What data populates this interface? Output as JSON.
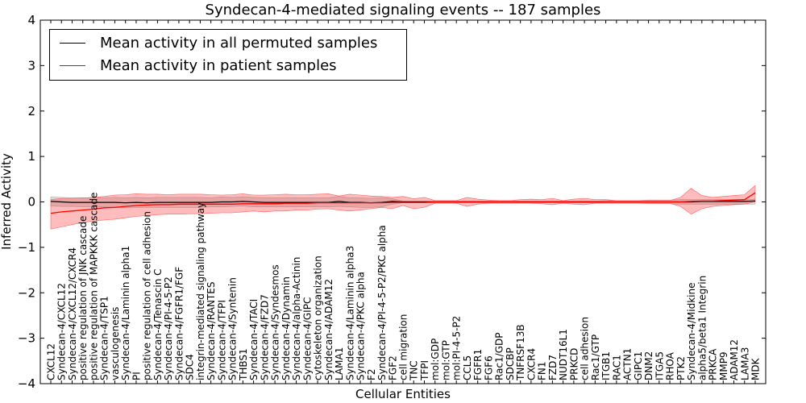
{
  "chart_data": {
    "type": "line",
    "title": "Syndecan-4-mediated signaling events -- 187 samples",
    "xlabel": "Cellular Entities",
    "ylabel": "Inferred Activity",
    "ylim": [
      -4,
      4
    ],
    "yticks": [
      -4,
      -3,
      -2,
      -1,
      0,
      1,
      2,
      3,
      4
    ],
    "ytick_labels": [
      "−4",
      "−3",
      "−2",
      "−1",
      "0",
      "1",
      "2",
      "3",
      "4"
    ],
    "legend_position": "top-left",
    "categories": [
      "CXCL12",
      "Syndecan-4/CXCL12",
      "Syndecan-4/CXCL12/CXCR4",
      "positive regulation of JNK cascade",
      "positive regulation of MAPKKK cascade",
      "Syndecan-4/TSP1",
      "vasculogenesis",
      "Syndecan-4/Laminin alpha1",
      "PI",
      "positive regulation of cell adhesion",
      "Syndecan-4/Tenascin C",
      "Syndecan-4/PI-4-5-P2",
      "Syndecan-4/FGFR1/FGF",
      "SDC4",
      "integrin-mediated signaling pathway",
      "Syndecan-4/RANTES",
      "Syndecan-4/TFPI",
      "Syndecan-4/Syntenin",
      "THBS1",
      "Syndecan-4/TACI",
      "Syndecan-4/FZD7",
      "Syndecan-4/Syndesmos",
      "Syndecan-4/Dynamin",
      "Syndecan-4/alpha-Actinin",
      "Syndecan-4/GIPC",
      "cytoskeleton organization",
      "Syndecan-4/ADAM12",
      "LAMA1",
      "Syndecan-4/Laminin alpha3",
      "Syndecan-4/PKC alpha",
      "F2",
      "Syndecan-4/PI-4-5-P2/PKC alpha",
      "FGF2",
      "cell migration",
      "TNC",
      "TFPI",
      "mol:GDP",
      "mol:GTP",
      "mol:PI-4-5-P2",
      "CCL5",
      "FGFR1",
      "FGF6",
      "Rac1/GDP",
      "SDCBP",
      "TNFRSF13B",
      "CXCR4",
      "FN1",
      "FZD7",
      "NUDT16L1",
      "PRKCD",
      "cell adhesion",
      "Rac1/GTP",
      "ITGB1",
      "RAC1",
      "ACTN1",
      "GIPC1",
      "DNM2",
      "ITGA5",
      "RHOA",
      "PTK2",
      "Syndecan-4/Midkine",
      "alpha5/beta1 Integrin",
      "PRKCA",
      "MMP9",
      "ADAM12",
      "LAMA3",
      "MDK"
    ],
    "series": [
      {
        "name": "Mean activity in all permuted samples",
        "color": "#000000",
        "values": [
          0.01,
          0.0,
          -0.01,
          -0.01,
          -0.01,
          -0.01,
          -0.01,
          -0.02,
          -0.01,
          -0.02,
          -0.01,
          -0.01,
          -0.01,
          -0.01,
          -0.01,
          -0.01,
          0.0,
          0.0,
          0.01,
          0.0,
          -0.01,
          -0.01,
          -0.01,
          -0.01,
          -0.01,
          -0.01,
          -0.01,
          0.01,
          -0.01,
          -0.01,
          -0.02,
          -0.01,
          0.01,
          0.0,
          0.0,
          0.0,
          0.0,
          0.0,
          0.0,
          0.0,
          0.0,
          0.0,
          0.0,
          0.0,
          0.0,
          0.0,
          0.0,
          0.0,
          0.0,
          0.0,
          0.0,
          0.0,
          0.0,
          0.0,
          0.0,
          0.0,
          0.0,
          0.0,
          0.0,
          0.0,
          0.0,
          0.01,
          0.01,
          0.01,
          0.01,
          0.01,
          0.02
        ],
        "lower": [
          -0.09,
          -0.1,
          -0.1,
          -0.11,
          -0.11,
          -0.11,
          -0.12,
          -0.12,
          -0.12,
          -0.12,
          -0.12,
          -0.12,
          -0.12,
          -0.12,
          -0.12,
          -0.11,
          -0.11,
          -0.1,
          -0.09,
          -0.11,
          -0.11,
          -0.11,
          -0.11,
          -0.11,
          -0.11,
          -0.11,
          -0.11,
          -0.1,
          -0.11,
          -0.12,
          -0.12,
          -0.11,
          -0.05,
          -0.02,
          -0.02,
          -0.02,
          -0.02,
          -0.02,
          -0.02,
          -0.02,
          -0.02,
          -0.02,
          -0.02,
          -0.02,
          -0.02,
          -0.02,
          -0.02,
          -0.02,
          -0.02,
          -0.02,
          -0.02,
          -0.02,
          -0.03,
          -0.03,
          -0.03,
          -0.03,
          -0.04,
          -0.04,
          -0.04,
          -0.05,
          -0.05,
          -0.05,
          -0.05,
          -0.05,
          -0.05,
          -0.05,
          -0.05
        ],
        "upper": [
          0.11,
          0.1,
          0.09,
          0.09,
          0.09,
          0.09,
          0.1,
          0.09,
          0.1,
          0.09,
          0.1,
          0.1,
          0.1,
          0.1,
          0.1,
          0.09,
          0.11,
          0.1,
          0.11,
          0.1,
          0.09,
          0.09,
          0.09,
          0.09,
          0.09,
          0.09,
          0.09,
          0.12,
          0.09,
          0.09,
          0.08,
          0.09,
          0.07,
          0.02,
          0.02,
          0.02,
          0.02,
          0.02,
          0.02,
          0.02,
          0.02,
          0.02,
          0.02,
          0.02,
          0.02,
          0.02,
          0.02,
          0.02,
          0.02,
          0.02,
          0.02,
          0.02,
          0.03,
          0.03,
          0.03,
          0.03,
          0.04,
          0.04,
          0.04,
          0.05,
          0.05,
          0.05,
          0.05,
          0.05,
          0.05,
          0.05,
          0.06
        ]
      },
      {
        "name": "Mean activity in patient samples",
        "color": "#ff0000",
        "values": [
          -0.25,
          -0.22,
          -0.2,
          -0.18,
          -0.16,
          -0.13,
          -0.12,
          -0.1,
          -0.08,
          -0.07,
          -0.06,
          -0.06,
          -0.05,
          -0.05,
          -0.05,
          -0.05,
          -0.05,
          -0.05,
          -0.04,
          -0.04,
          -0.04,
          -0.04,
          -0.03,
          -0.03,
          -0.03,
          -0.02,
          -0.02,
          -0.02,
          -0.02,
          -0.02,
          -0.02,
          -0.02,
          -0.01,
          -0.01,
          -0.01,
          -0.01,
          0.0,
          0.0,
          0.0,
          0.0,
          0.0,
          0.0,
          0.0,
          0.0,
          0.0,
          0.0,
          0.0,
          0.0,
          0.0,
          0.0,
          0.0,
          0.0,
          0.0,
          0.0,
          0.0,
          0.0,
          0.0,
          0.0,
          0.0,
          0.0,
          0.01,
          0.02,
          0.02,
          0.03,
          0.04,
          0.05,
          0.2
        ],
        "lower": [
          -0.6,
          -0.55,
          -0.5,
          -0.45,
          -0.42,
          -0.4,
          -0.38,
          -0.35,
          -0.32,
          -0.3,
          -0.28,
          -0.27,
          -0.27,
          -0.26,
          -0.26,
          -0.25,
          -0.24,
          -0.24,
          -0.22,
          -0.2,
          -0.22,
          -0.2,
          -0.2,
          -0.18,
          -0.18,
          -0.16,
          -0.15,
          -0.18,
          -0.2,
          -0.18,
          -0.15,
          -0.12,
          -0.15,
          -0.08,
          -0.15,
          -0.12,
          -0.03,
          -0.03,
          -0.03,
          -0.1,
          -0.05,
          -0.03,
          -0.03,
          -0.03,
          -0.03,
          -0.03,
          -0.04,
          -0.06,
          -0.03,
          -0.05,
          -0.06,
          -0.03,
          -0.03,
          -0.03,
          -0.03,
          -0.03,
          -0.03,
          -0.03,
          -0.03,
          -0.1,
          -0.27,
          -0.15,
          -0.1,
          -0.08,
          -0.06,
          -0.05,
          0.0
        ],
        "upper": [
          0.05,
          0.08,
          0.08,
          0.09,
          0.1,
          0.12,
          0.15,
          0.16,
          0.18,
          0.17,
          0.17,
          0.16,
          0.17,
          0.17,
          0.17,
          0.16,
          0.15,
          0.16,
          0.18,
          0.15,
          0.15,
          0.16,
          0.17,
          0.16,
          0.16,
          0.17,
          0.18,
          0.13,
          0.17,
          0.15,
          0.13,
          0.12,
          0.1,
          0.12,
          0.07,
          0.1,
          0.03,
          0.03,
          0.03,
          0.1,
          0.06,
          0.04,
          0.03,
          0.03,
          0.05,
          0.06,
          0.05,
          0.08,
          0.03,
          0.06,
          0.08,
          0.05,
          0.05,
          0.03,
          0.03,
          0.03,
          0.03,
          0.03,
          0.03,
          0.1,
          0.3,
          0.14,
          0.1,
          0.12,
          0.14,
          0.16,
          0.36
        ]
      }
    ]
  }
}
